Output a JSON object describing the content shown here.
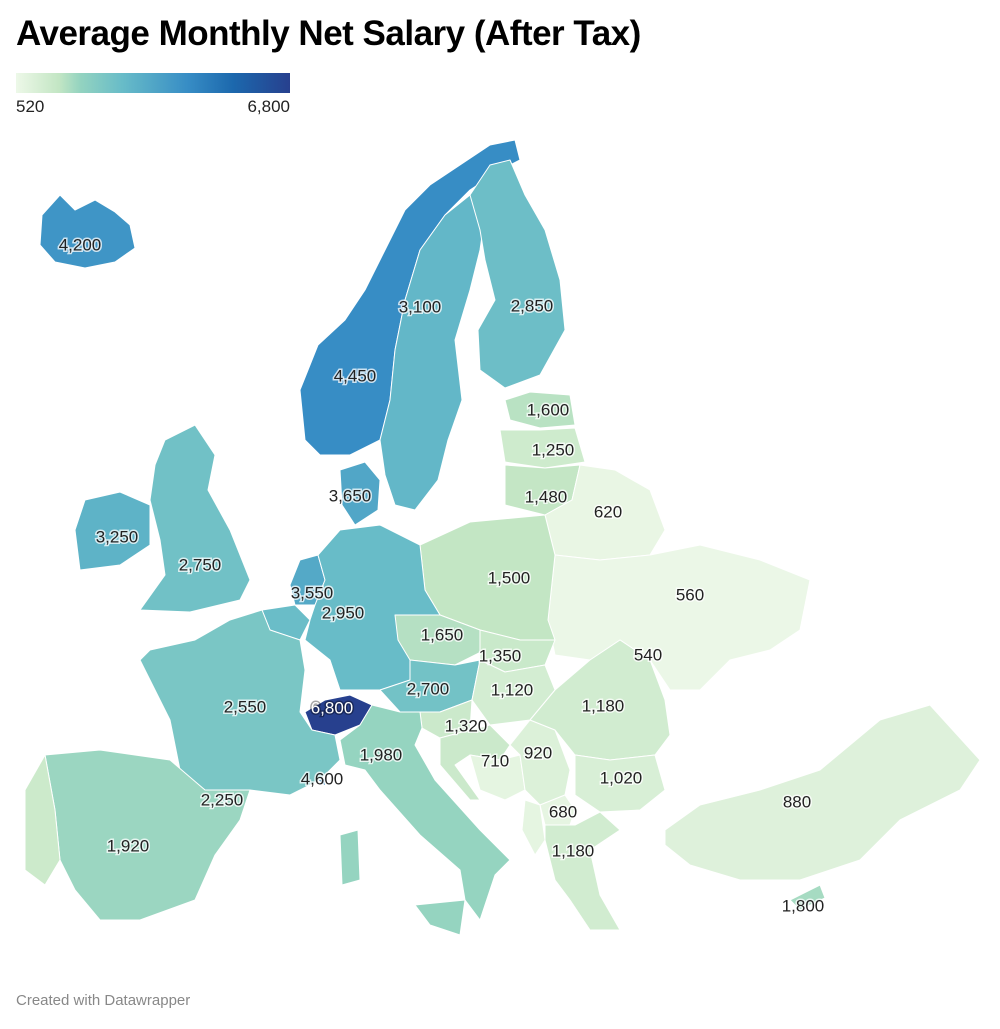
{
  "title": "Average Monthly Net Salary (After Tax)",
  "legend": {
    "min_label": "520",
    "max_label": "6,800",
    "min": 520,
    "max": 6800
  },
  "color_scale": {
    "stops": [
      {
        "v": 520,
        "c": "#edf8e8"
      },
      {
        "v": 1500,
        "c": "#c3e6c4"
      },
      {
        "v": 2000,
        "c": "#93d3c0"
      },
      {
        "v": 2950,
        "c": "#68bcc8"
      },
      {
        "v": 4450,
        "c": "#378dc5"
      },
      {
        "v": 5500,
        "c": "#1c68ad"
      },
      {
        "v": 6800,
        "c": "#27408e"
      }
    ]
  },
  "regions": [
    {
      "value": 4200,
      "label": "4,200"
    },
    {
      "value": 4450,
      "label": "4,450"
    },
    {
      "value": 3100,
      "label": "3,100"
    },
    {
      "value": 2850,
      "label": "2,850"
    },
    {
      "value": 1600,
      "label": "1,600"
    },
    {
      "value": 1250,
      "label": "1,250"
    },
    {
      "value": 1480,
      "label": "1,480"
    },
    {
      "value": 620,
      "label": "620"
    },
    {
      "value": 560,
      "label": "560"
    },
    {
      "value": 540,
      "label": "540"
    },
    {
      "value": 1500,
      "label": "1,500"
    },
    {
      "value": 3650,
      "label": "3,650"
    },
    {
      "value": 3250,
      "label": "3,250"
    },
    {
      "value": 2750,
      "label": "2,750"
    },
    {
      "value": 3550,
      "label": "3,550"
    },
    {
      "value": 2950,
      "label": "2,950"
    },
    {
      "value": 1650,
      "label": "1,650"
    },
    {
      "value": 1350,
      "label": "1,350"
    },
    {
      "value": 2700,
      "label": "2,700"
    },
    {
      "value": 1120,
      "label": "1,120"
    },
    {
      "value": 1320,
      "label": "1,320"
    },
    {
      "value": 710,
      "label": "710"
    },
    {
      "value": 920,
      "label": "920"
    },
    {
      "value": 1180,
      "label": "1,180"
    },
    {
      "value": 1020,
      "label": "1,020"
    },
    {
      "value": 680,
      "label": "680"
    },
    {
      "value": 1180,
      "label": "1,180"
    },
    {
      "value": 880,
      "label": "880"
    },
    {
      "value": 1800,
      "label": "1,800"
    },
    {
      "value": 6800,
      "label": "6,800"
    },
    {
      "value": 1980,
      "label": "1,980"
    },
    {
      "value": 2550,
      "label": "2,550"
    },
    {
      "value": 1920,
      "label": "1,920"
    },
    {
      "value": 2250,
      "label": "2,250"
    },
    {
      "value": 4600,
      "label": "4,600"
    }
  ],
  "credit": "Created with Datawrapper"
}
